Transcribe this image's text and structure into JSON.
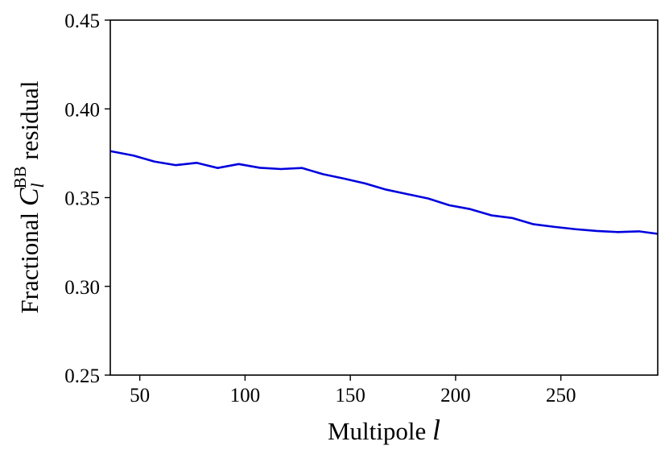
{
  "chart_data": {
    "type": "line",
    "title": "",
    "xlabel": {
      "prefix": "Multipole ",
      "symbol": "l"
    },
    "ylabel": {
      "prefix": "Fractional ",
      "symbol": "C",
      "subscript": "l",
      "superscript": "BB",
      "suffix": " residual"
    },
    "xlim": [
      36,
      296
    ],
    "ylim": [
      0.25,
      0.45
    ],
    "x_ticks": [
      {
        "value": 50,
        "label": "50"
      },
      {
        "value": 100,
        "label": "100"
      },
      {
        "value": 150,
        "label": "150"
      },
      {
        "value": 200,
        "label": "200"
      },
      {
        "value": 250,
        "label": "250"
      }
    ],
    "y_ticks": [
      {
        "value": 0.25,
        "label": "0.25"
      },
      {
        "value": 0.3,
        "label": "0.30"
      },
      {
        "value": 0.35,
        "label": "0.35"
      },
      {
        "value": 0.4,
        "label": "0.40"
      },
      {
        "value": 0.45,
        "label": "0.45"
      }
    ],
    "grid": false,
    "series": [
      {
        "color": "#0000dd",
        "x": [
          36,
          47,
          57,
          67,
          77,
          87,
          97,
          107,
          117,
          127,
          137,
          147,
          157,
          167,
          177,
          187,
          197,
          207,
          217,
          227,
          237,
          247,
          257,
          267,
          277,
          287,
          296
        ],
        "y": [
          0.3762,
          0.3737,
          0.3703,
          0.3683,
          0.3696,
          0.3667,
          0.3689,
          0.3668,
          0.3661,
          0.3667,
          0.3632,
          0.3607,
          0.358,
          0.3545,
          0.352,
          0.3495,
          0.3457,
          0.3435,
          0.34,
          0.3385,
          0.335,
          0.3335,
          0.3322,
          0.3312,
          0.3306,
          0.331,
          0.3296
        ]
      }
    ]
  }
}
